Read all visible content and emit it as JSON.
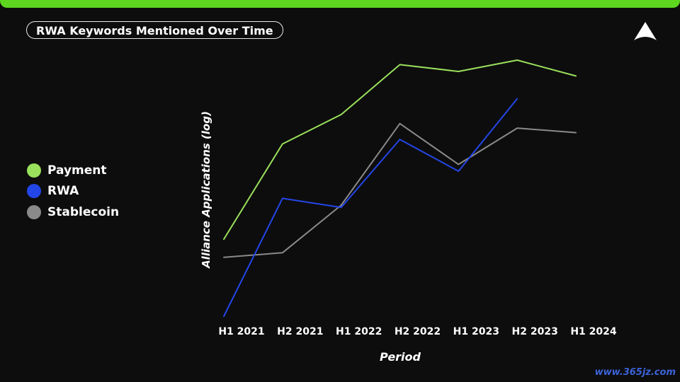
{
  "header": {
    "title": "RWA Keywords Mentioned Over Time",
    "accent_color": "#5dd61f"
  },
  "logo": {
    "icon": "triangle-logo-icon"
  },
  "watermark": "www.365jz.com",
  "chart_data": {
    "type": "line",
    "title": "RWA Keywords Mentioned Over Time",
    "xlabel": "Period",
    "ylabel": "Alliance Applications (log)",
    "categories": [
      "H1 2021",
      "H2 2021",
      "H1 2022",
      "H2 2022",
      "H1 2023",
      "H2 2023",
      "H1 2024"
    ],
    "y_scale": "log",
    "y_tick_labels": false,
    "grid": false,
    "legend_position": "left",
    "series": [
      {
        "name": "Payment",
        "color": "#9ae05c",
        "values": [
          4.2,
          6.3,
          6.95,
          8.05,
          7.9,
          8.15,
          7.8
        ]
      },
      {
        "name": "RWA",
        "color": "#2346e8",
        "values": [
          2.5,
          5.1,
          4.9,
          6.4,
          5.7,
          7.3,
          null
        ]
      },
      {
        "name": "Stablecoin",
        "color": "#8a8a8a",
        "values": [
          3.8,
          3.9,
          4.95,
          6.75,
          5.85,
          6.65,
          6.55
        ]
      }
    ]
  }
}
